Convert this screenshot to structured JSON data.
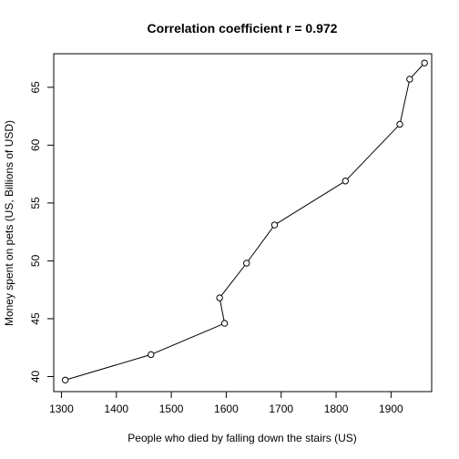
{
  "chart_data": {
    "type": "line",
    "title": "Correlation coefficient r =  0.972",
    "xlabel": "People who died by falling down the stairs (US)",
    "ylabel": "Money spent on pets (US, Billions of USD)",
    "xlim": [
      1286,
      1974
    ],
    "ylim": [
      38.7,
      67.9
    ],
    "x_ticks": [
      1300,
      1400,
      1500,
      1600,
      1700,
      1800,
      1900
    ],
    "y_ticks": [
      40,
      45,
      50,
      55,
      60,
      65
    ],
    "grid": false,
    "points": [
      {
        "x": 1307,
        "y": 39.7
      },
      {
        "x": 1463,
        "y": 41.9
      },
      {
        "x": 1597,
        "y": 44.6
      },
      {
        "x": 1588,
        "y": 46.8
      },
      {
        "x": 1637,
        "y": 49.8
      },
      {
        "x": 1688,
        "y": 53.1
      },
      {
        "x": 1817,
        "y": 56.9
      },
      {
        "x": 1916,
        "y": 61.8
      },
      {
        "x": 1934,
        "y": 65.7
      },
      {
        "x": 1961,
        "y": 67.1
      }
    ]
  }
}
